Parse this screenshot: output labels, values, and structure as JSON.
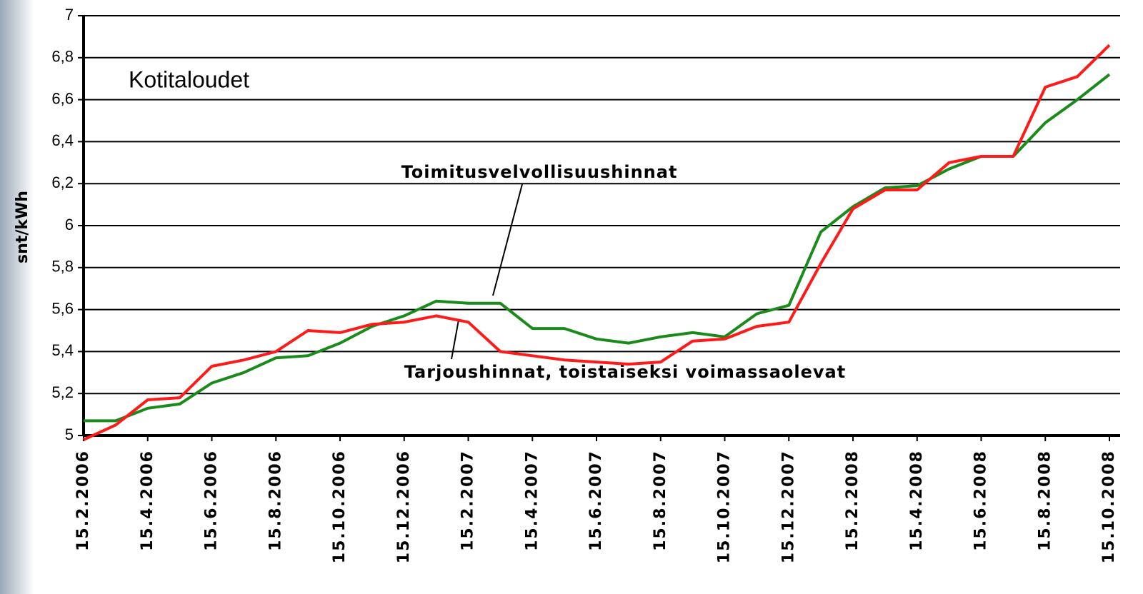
{
  "chart_data": {
    "type": "line",
    "title": "Kotitaloudet",
    "y_label": "snt/kWh",
    "categories": [
      "15.2.2006",
      null,
      "15.4.2006",
      null,
      "15.6.2006",
      null,
      "15.8.2006",
      null,
      "15.10.2006",
      null,
      "15.12.2006",
      null,
      "15.2.2007",
      null,
      "15.4.2007",
      null,
      "15.6.2007",
      null,
      "15.8.2007",
      null,
      "15.10.2007",
      null,
      "15.12.2007",
      null,
      "15.2.2008",
      null,
      "15.4.2008",
      null,
      "15.6.2008",
      null,
      "15.8.2008",
      null,
      "15.10.2008"
    ],
    "series": [
      {
        "name": "Toimitusvelvollisuushinnat",
        "color": "#1a8a1a",
        "values": [
          5.07,
          5.07,
          5.13,
          5.15,
          5.25,
          5.3,
          5.37,
          5.38,
          5.44,
          5.52,
          5.57,
          5.64,
          5.63,
          5.63,
          5.51,
          5.51,
          5.46,
          5.44,
          5.47,
          5.49,
          5.47,
          5.58,
          5.62,
          5.97,
          6.09,
          6.18,
          6.19,
          6.27,
          6.33,
          6.33,
          6.49,
          6.6,
          6.72
        ]
      },
      {
        "name": "Tarjoushinnat, toistaiseksi voimassaolevat",
        "color": "#ff1a1a",
        "values": [
          4.98,
          5.05,
          5.17,
          5.18,
          5.33,
          5.36,
          5.4,
          5.5,
          5.49,
          5.53,
          5.54,
          5.57,
          5.54,
          5.4,
          5.38,
          5.36,
          5.35,
          5.34,
          5.35,
          5.45,
          5.46,
          5.52,
          5.54,
          5.82,
          6.08,
          6.17,
          6.17,
          6.3,
          6.33,
          6.33,
          6.66,
          6.71,
          6.86
        ]
      }
    ],
    "ylim": [
      5,
      7
    ],
    "yticks": [
      5,
      {
        "value": 5.2,
        "label": "5,2"
      },
      {
        "value": 5.4,
        "label": "5,4"
      },
      {
        "value": 5.6,
        "label": "5,6"
      },
      {
        "value": 5.8,
        "label": "5,8"
      },
      6,
      {
        "value": 6.2,
        "label": "6,2"
      },
      {
        "value": 6.4,
        "label": "6,4"
      },
      {
        "value": 6.6,
        "label": "6,6"
      },
      {
        "value": 6.8,
        "label": "6,8"
      },
      7
    ],
    "grid": true
  }
}
